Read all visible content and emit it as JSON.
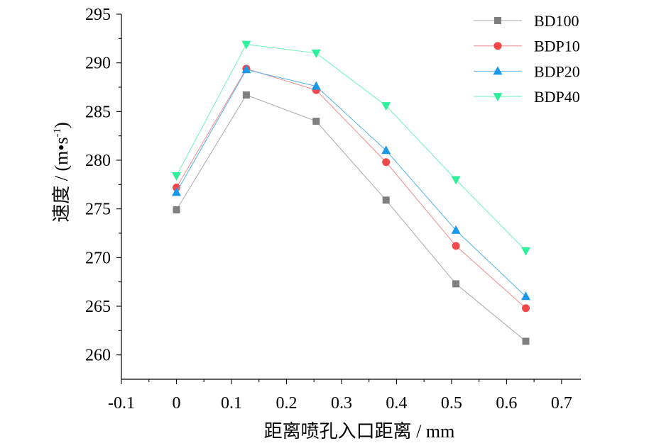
{
  "chart_data": {
    "type": "line",
    "xlabel": "距离喷孔入口距离 / mm",
    "ylabel": {
      "text": "速度 / (m•s",
      "superscript": "-1",
      "suffix": ")"
    },
    "x_tick_labels": [
      "-0.1",
      "0",
      "0.1",
      "0.2",
      "0.3",
      "0.4",
      "0.5",
      "0.6",
      "0.7"
    ],
    "y_tick_labels": [
      "260",
      "265",
      "270",
      "275",
      "280",
      "285",
      "290",
      "295"
    ],
    "xlim": [
      -0.1,
      0.735
    ],
    "ylim": [
      257.5,
      295
    ],
    "grid": false,
    "legend": "top-right",
    "x": [
      0,
      0.127,
      0.254,
      0.381,
      0.508,
      0.635
    ],
    "series": [
      {
        "name": "BD100",
        "marker": "square",
        "color": "#7f7f7f",
        "line_color": "#a8a8a8",
        "values": [
          274.9,
          286.7,
          284.0,
          275.9,
          267.3,
          261.4
        ]
      },
      {
        "name": "BDP10",
        "marker": "circle",
        "color": "#f04848",
        "line_color": "#f28a8a",
        "values": [
          277.2,
          289.4,
          287.2,
          279.8,
          271.2,
          264.8
        ]
      },
      {
        "name": "BDP20",
        "marker": "triangle-up",
        "color": "#1a98ea",
        "line_color": "#4fb3ef",
        "values": [
          276.7,
          289.3,
          287.6,
          281.0,
          272.8,
          266.0
        ]
      },
      {
        "name": "BDP40",
        "marker": "triangle-down",
        "color": "#2ef09a",
        "line_color": "#6ef2b8",
        "values": [
          278.4,
          291.9,
          291.0,
          285.6,
          278.0,
          270.7
        ]
      }
    ]
  }
}
